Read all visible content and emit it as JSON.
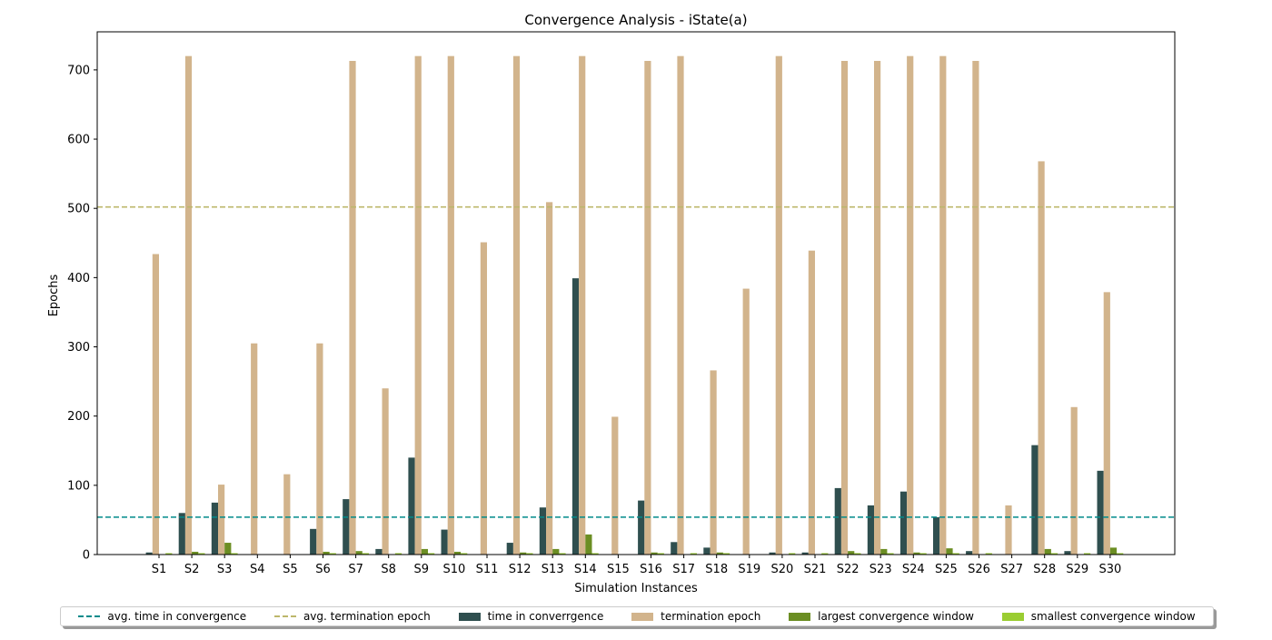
{
  "colors": {
    "time": "#2f4f4f",
    "termination": "#d2b48c",
    "largest": "#6b8e23",
    "smallest": "#9acd32",
    "avg_time": "#008b8b",
    "avg_termination": "#bdb76b"
  },
  "chart_data": {
    "type": "bar",
    "title": "Convergence Analysis - iState(a)",
    "xlabel": "Simulation Instances",
    "ylabel": "Epochs",
    "ylim": [
      0,
      755
    ],
    "yticks": [
      0,
      100,
      200,
      300,
      400,
      500,
      600,
      700
    ],
    "grid": false,
    "legend_position": "bottom",
    "categories": [
      "S1",
      "S2",
      "S3",
      "S4",
      "S5",
      "S6",
      "S7",
      "S8",
      "S9",
      "S10",
      "S11",
      "S12",
      "S13",
      "S14",
      "S15",
      "S16",
      "S17",
      "S18",
      "S19",
      "S20",
      "S21",
      "S22",
      "S23",
      "S24",
      "S25",
      "S26",
      "S27",
      "S28",
      "S29",
      "S30"
    ],
    "series": [
      {
        "name": "time in converrgence",
        "values": [
          3,
          60,
          75,
          0,
          0,
          37,
          80,
          8,
          140,
          36,
          0,
          17,
          68,
          399,
          0,
          78,
          18,
          10,
          0,
          3,
          3,
          96,
          71,
          91,
          54,
          5,
          0,
          158,
          5,
          121
        ]
      },
      {
        "name": "termination epoch",
        "values": [
          434,
          720,
          101,
          305,
          116,
          305,
          713,
          240,
          720,
          720,
          451,
          720,
          509,
          720,
          199,
          713,
          720,
          266,
          384,
          720,
          439,
          713,
          713,
          720,
          720,
          713,
          71,
          568,
          213,
          379
        ]
      },
      {
        "name": "largest convergence window",
        "values": [
          0,
          4,
          17,
          0,
          0,
          4,
          5,
          0,
          8,
          4,
          0,
          3,
          8,
          29,
          0,
          3,
          0,
          3,
          0,
          0,
          0,
          5,
          8,
          3,
          9,
          0,
          0,
          8,
          0,
          10
        ]
      },
      {
        "name": "smallest convergence window",
        "values": [
          2,
          2,
          2,
          0,
          0,
          2,
          2,
          2,
          2,
          2,
          0,
          2,
          2,
          2,
          0,
          2,
          2,
          2,
          0,
          2,
          2,
          2,
          2,
          2,
          2,
          2,
          0,
          2,
          2,
          2
        ]
      }
    ],
    "reference_lines": [
      {
        "name": "avg. time in convergence",
        "value": 54
      },
      {
        "name": "avg. termination epoch",
        "value": 502
      }
    ],
    "legend": [
      "avg. time in convergence",
      "avg. termination epoch",
      "time in converrgence",
      "termination epoch",
      "largest convergence window",
      "smallest convergence window"
    ]
  }
}
